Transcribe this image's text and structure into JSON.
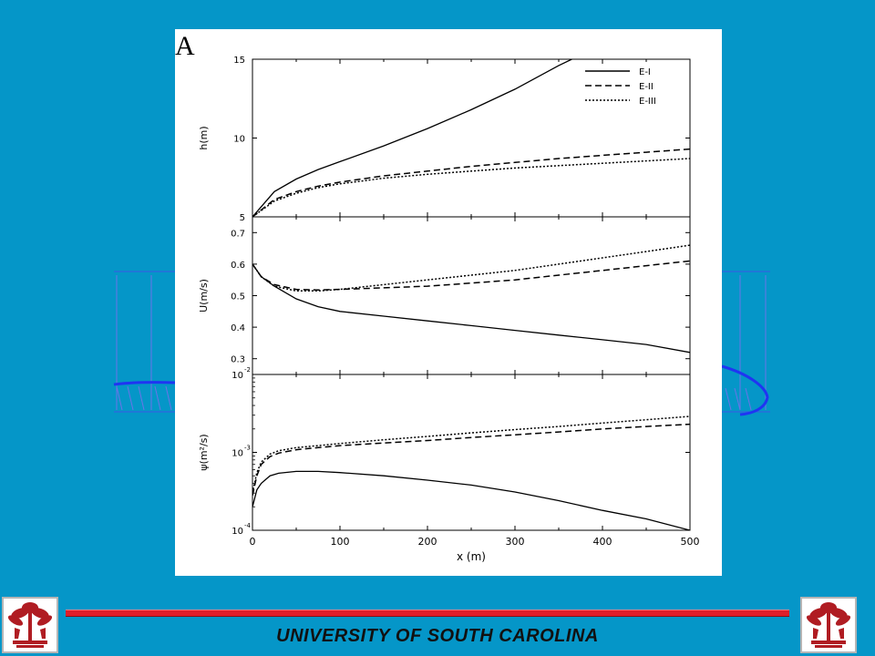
{
  "panel_letter": "A",
  "footer": {
    "institution": "UNIVERSITY OF SOUTH CAROLINA"
  },
  "logo": {
    "icon": "palmetto-tree-icon",
    "color": "#b01c22",
    "mark": "®"
  },
  "colors": {
    "background": "#0596c8",
    "footer_bar": "#e01e2a",
    "panel": "#ffffff",
    "background_figure": "#2a3cf0"
  },
  "chart_data": [
    {
      "type": "line",
      "ylabel": "h(m)",
      "xlim": [
        0,
        500
      ],
      "ylim": [
        5,
        15
      ],
      "yscale": "linear",
      "yticks": [
        5,
        10,
        15
      ],
      "ytick_labels": [
        "5",
        "10",
        "15"
      ],
      "legend": "top-right",
      "series": [
        {
          "name": "E-I",
          "style": "solid",
          "x": [
            0,
            25,
            50,
            75,
            100,
            150,
            200,
            250,
            300,
            350,
            365
          ],
          "y": [
            5.0,
            6.6,
            7.4,
            8.0,
            8.5,
            9.5,
            10.6,
            11.8,
            13.1,
            14.6,
            15.0
          ]
        },
        {
          "name": "E-II",
          "style": "dashed",
          "x": [
            0,
            25,
            50,
            75,
            100,
            150,
            200,
            250,
            300,
            350,
            400,
            450,
            500
          ],
          "y": [
            5.0,
            6.1,
            6.6,
            6.95,
            7.2,
            7.6,
            7.9,
            8.2,
            8.45,
            8.7,
            8.9,
            9.1,
            9.3
          ]
        },
        {
          "name": "E-III",
          "style": "dotted",
          "x": [
            0,
            25,
            50,
            75,
            100,
            150,
            200,
            250,
            300,
            350,
            400,
            450,
            500
          ],
          "y": [
            5.0,
            6.0,
            6.5,
            6.85,
            7.1,
            7.45,
            7.7,
            7.9,
            8.1,
            8.25,
            8.4,
            8.55,
            8.7
          ]
        }
      ]
    },
    {
      "type": "line",
      "ylabel": "U(m/s)",
      "xlim": [
        0,
        500
      ],
      "ylim": [
        0.25,
        0.75
      ],
      "yscale": "linear",
      "yticks": [
        0.3,
        0.4,
        0.5,
        0.6,
        0.7
      ],
      "ytick_labels": [
        "0.3",
        "0.4",
        "0.5",
        "0.6",
        "0.7"
      ],
      "series": [
        {
          "name": "E-I",
          "style": "solid",
          "x": [
            0,
            10,
            25,
            50,
            75,
            100,
            150,
            200,
            250,
            300,
            350,
            400,
            450,
            500
          ],
          "y": [
            0.6,
            0.56,
            0.53,
            0.49,
            0.465,
            0.45,
            0.435,
            0.42,
            0.405,
            0.39,
            0.375,
            0.36,
            0.345,
            0.32
          ]
        },
        {
          "name": "E-II",
          "style": "dashed",
          "x": [
            0,
            10,
            25,
            50,
            75,
            100,
            150,
            200,
            250,
            300,
            350,
            400,
            450,
            500
          ],
          "y": [
            0.6,
            0.56,
            0.535,
            0.52,
            0.518,
            0.52,
            0.525,
            0.53,
            0.54,
            0.55,
            0.565,
            0.58,
            0.595,
            0.61
          ]
        },
        {
          "name": "E-III",
          "style": "dotted",
          "x": [
            0,
            10,
            25,
            50,
            75,
            100,
            150,
            200,
            250,
            300,
            350,
            400,
            450,
            500
          ],
          "y": [
            0.6,
            0.56,
            0.53,
            0.515,
            0.515,
            0.52,
            0.535,
            0.55,
            0.565,
            0.58,
            0.6,
            0.62,
            0.64,
            0.66
          ]
        }
      ]
    },
    {
      "type": "line",
      "ylabel": "ψ(m²/s)",
      "xlabel": "x (m)",
      "xlim": [
        0,
        500
      ],
      "xticks": [
        0,
        100,
        200,
        300,
        400,
        500
      ],
      "xtick_labels": [
        "0",
        "100",
        "200",
        "300",
        "400",
        "500"
      ],
      "ylim": [
        0.0001,
        0.01
      ],
      "yscale": "log",
      "yticks": [
        0.0001,
        0.001,
        0.01
      ],
      "ytick_labels": [
        {
          "base": "10",
          "exp": "-4"
        },
        {
          "base": "10",
          "exp": "-3"
        },
        {
          "base": "10",
          "exp": "-2"
        }
      ],
      "series": [
        {
          "name": "E-I",
          "style": "solid",
          "x": [
            0,
            5,
            10,
            20,
            30,
            50,
            75,
            100,
            150,
            200,
            250,
            300,
            350,
            400,
            450,
            500
          ],
          "y": [
            0.0002,
            0.00033,
            0.0004,
            0.0005,
            0.00054,
            0.00057,
            0.00057,
            0.00055,
            0.0005,
            0.00044,
            0.00038,
            0.00031,
            0.00024,
            0.00018,
            0.00014,
            0.0001
          ]
        },
        {
          "name": "E-II",
          "style": "dashed",
          "x": [
            0,
            5,
            10,
            20,
            30,
            50,
            75,
            100,
            150,
            200,
            250,
            300,
            350,
            400,
            450,
            500
          ],
          "y": [
            0.00028,
            0.0005,
            0.0007,
            0.00088,
            0.00098,
            0.00108,
            0.00115,
            0.00122,
            0.00132,
            0.00142,
            0.00155,
            0.00168,
            0.00183,
            0.002,
            0.00215,
            0.0023
          ]
        },
        {
          "name": "E-III",
          "style": "dotted",
          "x": [
            0,
            5,
            10,
            20,
            30,
            50,
            75,
            100,
            150,
            200,
            250,
            300,
            350,
            400,
            450,
            500
          ],
          "y": [
            0.0003,
            0.00055,
            0.00075,
            0.00095,
            0.00105,
            0.00115,
            0.00122,
            0.0013,
            0.00145,
            0.0016,
            0.00178,
            0.00196,
            0.00215,
            0.00238,
            0.00262,
            0.0029
          ]
        }
      ]
    }
  ]
}
